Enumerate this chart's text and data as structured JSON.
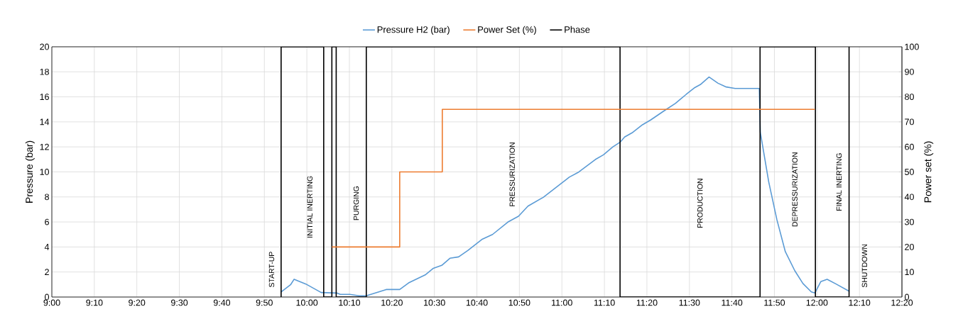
{
  "chart_data": {
    "type": "line",
    "ylabel": "Pressure (bar)",
    "y2label": "Power set (%)",
    "xlim": [
      9,
      12.3333
    ],
    "ylim": [
      0,
      20
    ],
    "y2lim": [
      0,
      100
    ],
    "xticks": [
      {
        "value": 9,
        "label": "9:00"
      },
      {
        "value": 9.1667,
        "label": "9:10"
      },
      {
        "value": 9.3333,
        "label": "9:20"
      },
      {
        "value": 9.5,
        "label": "9:30"
      },
      {
        "value": 9.6667,
        "label": "9:40"
      },
      {
        "value": 9.8333,
        "label": "9:50"
      },
      {
        "value": 10,
        "label": "10:00"
      },
      {
        "value": 10.1667,
        "label": "10:10"
      },
      {
        "value": 10.3333,
        "label": "10:20"
      },
      {
        "value": 10.5,
        "label": "10:30"
      },
      {
        "value": 10.6667,
        "label": "10:40"
      },
      {
        "value": 10.8333,
        "label": "10:50"
      },
      {
        "value": 11,
        "label": "11:00"
      },
      {
        "value": 11.1667,
        "label": "11:10"
      },
      {
        "value": 11.3333,
        "label": "11:20"
      },
      {
        "value": 11.5,
        "label": "11:30"
      },
      {
        "value": 11.6667,
        "label": "11:40"
      },
      {
        "value": 11.8333,
        "label": "11:50"
      },
      {
        "value": 12,
        "label": "12:00"
      },
      {
        "value": 12.1667,
        "label": "12:10"
      },
      {
        "value": 12.3333,
        "label": "12:20"
      }
    ],
    "yticks": [
      0,
      2,
      4,
      6,
      8,
      10,
      12,
      14,
      16,
      18,
      20
    ],
    "y2ticks": [
      0,
      10,
      20,
      30,
      40,
      50,
      60,
      70,
      80,
      90,
      100
    ],
    "grid": true,
    "legend": "top",
    "series": [
      {
        "name": "Pressure H2 (bar)",
        "color": "#5b9bd5",
        "x": [
          9.899,
          9.936,
          9.95,
          9.996,
          10.056,
          10.117,
          10.131,
          10.168,
          10.205,
          10.233,
          10.311,
          10.364,
          10.399,
          10.464,
          10.496,
          10.529,
          10.561,
          10.595,
          10.631,
          10.686,
          10.728,
          10.788,
          10.83,
          10.867,
          10.927,
          10.987,
          11.029,
          11.066,
          11.131,
          11.163,
          11.2,
          11.228,
          11.246,
          11.278,
          11.316,
          11.348,
          11.399,
          11.445,
          11.464,
          11.487,
          11.51,
          11.519,
          11.543,
          11.577,
          11.612,
          11.644,
          11.679,
          11.774,
          11.778,
          11.811,
          11.843,
          11.876,
          11.913,
          11.945,
          11.978,
          11.992,
          12.015,
          12.04,
          12.075,
          12.126
        ],
        "values": [
          0.41,
          0.98,
          1.42,
          1.04,
          0.36,
          0.32,
          0.21,
          0.21,
          0.1,
          0.1,
          0.6,
          0.6,
          1.13,
          1.77,
          2.3,
          2.53,
          3.1,
          3.21,
          3.72,
          4.6,
          5.0,
          5.99,
          6.46,
          7.27,
          7.97,
          8.91,
          9.58,
          9.99,
          10.99,
          11.37,
          12.0,
          12.37,
          12.79,
          13.16,
          13.77,
          14.15,
          14.86,
          15.47,
          15.8,
          16.19,
          16.56,
          16.71,
          16.98,
          17.58,
          17.09,
          16.79,
          16.67,
          16.67,
          13.16,
          9.2,
          6.18,
          3.63,
          2.11,
          1.08,
          0.41,
          0.32,
          1.23,
          1.42,
          1.04,
          0.47
        ]
      },
      {
        "name": "Power Set (%)",
        "type": "step",
        "axis": "y2",
        "color": "#ed7d31",
        "x": [
          10.098,
          10.364,
          10.531,
          11.992
        ],
        "values": [
          20,
          50,
          75,
          75
        ]
      },
      {
        "name": "Phase",
        "color": "#000000",
        "x": [
          9.899,
          9.899,
          10.066,
          10.066,
          10.098,
          10.098,
          10.115,
          10.115,
          10.233,
          10.233,
          11.228,
          11.228,
          11.777,
          11.777,
          11.994,
          11.994,
          12.126,
          12.126
        ],
        "values": [
          0,
          20,
          20,
          0,
          0,
          20,
          20,
          0,
          0,
          20,
          20,
          0,
          0,
          20,
          20,
          0,
          0,
          20
        ]
      }
    ],
    "annotations": [
      "START-UP",
      "INITIAL INERTING",
      "PURGING",
      "PRESSURIZATION",
      "PRODUCTION",
      "DEPRESSURIZATION",
      "FINAL INERTING",
      "SHUTDOWN"
    ]
  }
}
